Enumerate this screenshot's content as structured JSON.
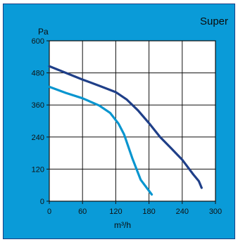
{
  "chart_data": {
    "type": "line",
    "title": "Super",
    "xlabel": "m³/h",
    "ylabel": "Pa",
    "xlim": [
      0,
      300
    ],
    "ylim": [
      0,
      600
    ],
    "x_ticks": [
      0,
      60,
      120,
      180,
      240,
      300
    ],
    "y_ticks": [
      0,
      120,
      240,
      360,
      480,
      600
    ],
    "x_tick_labels": [
      "0",
      "60",
      "120",
      "180",
      "240",
      "300"
    ],
    "y_tick_labels": [
      "0",
      "120",
      "240",
      "360",
      "480",
      "600"
    ],
    "grid": true,
    "legend": "none",
    "colors": {
      "panel_background": "#0a9bd8",
      "plot_background": "#ffffff",
      "grid": "#111111",
      "dark_series": "#1f3f88",
      "light_series": "#0895cf"
    },
    "series": [
      {
        "key": "dark",
        "x": [
          0,
          30,
          60,
          90,
          120,
          140,
          160,
          180,
          200,
          220,
          240,
          260,
          270,
          275
        ],
        "y": [
          505,
          480,
          455,
          432,
          408,
          380,
          340,
          292,
          240,
          198,
          155,
          100,
          75,
          50
        ]
      },
      {
        "key": "light",
        "x": [
          0,
          30,
          60,
          90,
          110,
          125,
          135,
          150,
          165,
          185
        ],
        "y": [
          428,
          405,
          385,
          358,
          330,
          290,
          250,
          160,
          80,
          25
        ]
      }
    ]
  }
}
